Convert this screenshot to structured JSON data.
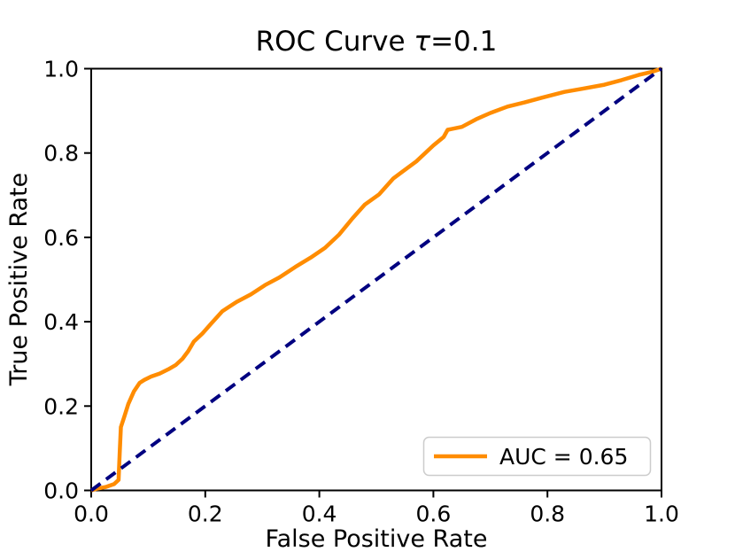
{
  "chart_data": {
    "type": "line",
    "title": "ROC Curve τ=0.1",
    "title_parts": {
      "prefix": "ROC Curve ",
      "tau": "τ",
      "suffix": "=0.1"
    },
    "xlabel": "False Positive Rate",
    "ylabel": "True Positive Rate",
    "xlim": [
      0.0,
      1.0
    ],
    "ylim": [
      0.0,
      1.0
    ],
    "xticks": [
      "0.0",
      "0.2",
      "0.4",
      "0.6",
      "0.8",
      "1.0"
    ],
    "yticks": [
      "0.0",
      "0.2",
      "0.4",
      "0.6",
      "0.8",
      "1.0"
    ],
    "grid": false,
    "legend": {
      "label": "AUC = 0.65",
      "position": "lower right"
    },
    "colors": {
      "roc_curve": "#FF8C00",
      "chance_line": "#000080",
      "legend_border": "#cccccc",
      "text": "#000000"
    },
    "series": [
      {
        "name": "roc-curve",
        "label": "AUC = 0.65",
        "color": "#FF8C00",
        "style": "solid",
        "x": [
          0.0,
          0.01,
          0.025,
          0.04,
          0.048,
          0.05,
          0.052,
          0.058,
          0.065,
          0.075,
          0.085,
          0.093,
          0.105,
          0.12,
          0.135,
          0.148,
          0.16,
          0.17,
          0.18,
          0.195,
          0.21,
          0.23,
          0.255,
          0.28,
          0.305,
          0.33,
          0.358,
          0.385,
          0.41,
          0.435,
          0.458,
          0.48,
          0.505,
          0.53,
          0.545,
          0.57,
          0.6,
          0.618,
          0.625,
          0.65,
          0.675,
          0.7,
          0.73,
          0.76,
          0.79,
          0.83,
          0.86,
          0.9,
          0.93,
          0.96,
          0.985,
          1.0
        ],
        "y": [
          0.0,
          0.004,
          0.008,
          0.015,
          0.025,
          0.09,
          0.15,
          0.175,
          0.205,
          0.235,
          0.255,
          0.262,
          0.27,
          0.277,
          0.287,
          0.297,
          0.312,
          0.33,
          0.353,
          0.372,
          0.395,
          0.425,
          0.447,
          0.465,
          0.487,
          0.505,
          0.53,
          0.552,
          0.575,
          0.607,
          0.645,
          0.678,
          0.702,
          0.74,
          0.755,
          0.78,
          0.818,
          0.838,
          0.855,
          0.862,
          0.88,
          0.895,
          0.91,
          0.92,
          0.931,
          0.945,
          0.952,
          0.962,
          0.973,
          0.985,
          0.993,
          1.0
        ]
      },
      {
        "name": "chance-diagonal",
        "label": "",
        "color": "#000080",
        "style": "dashed",
        "x": [
          0.0,
          1.0
        ],
        "y": [
          0.0,
          1.0
        ]
      }
    ]
  }
}
